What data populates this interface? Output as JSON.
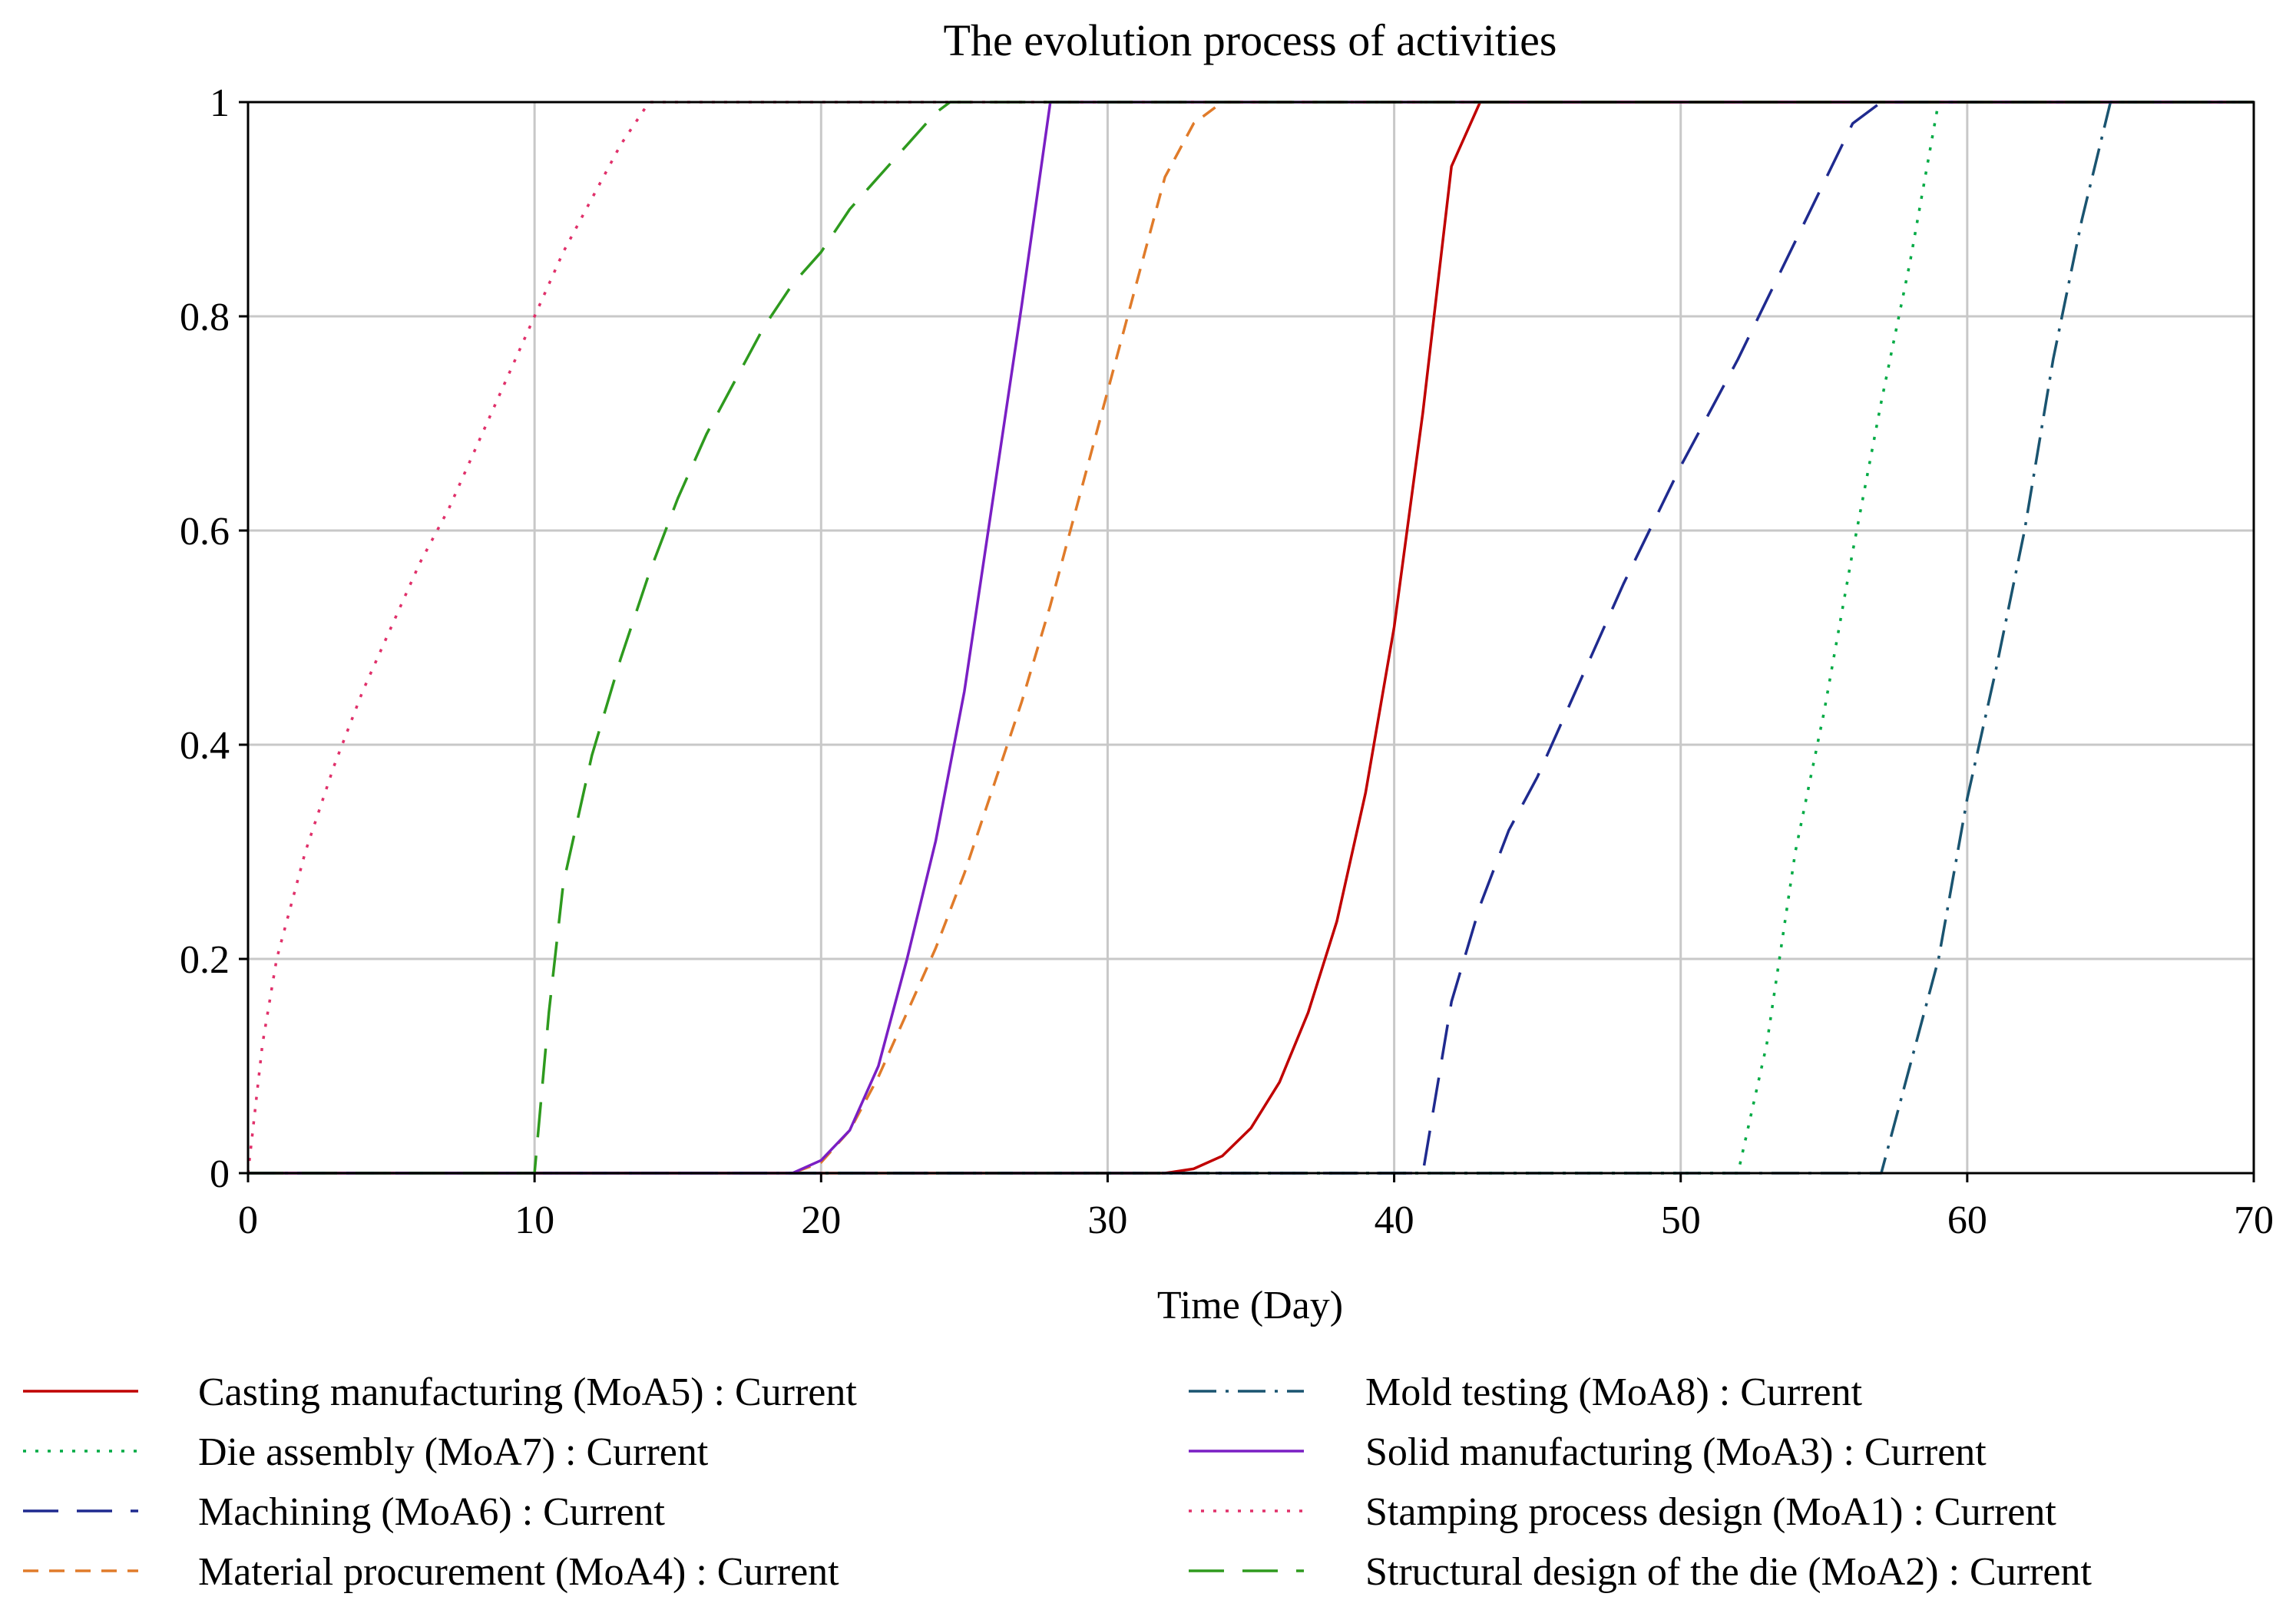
{
  "chart_data": {
    "type": "line",
    "title": "The evolution process of activities",
    "xlabel": "Time (Day)",
    "ylabel": "",
    "xlim": [
      0,
      70
    ],
    "ylim": [
      0,
      1
    ],
    "xticks": [
      0,
      10,
      20,
      30,
      40,
      50,
      60,
      70
    ],
    "yticks": [
      0,
      0.2,
      0.4,
      0.6,
      0.8,
      1
    ],
    "ytick_labels": [
      "0",
      "0.2",
      "0.4",
      "0.6",
      "0.8",
      "1"
    ],
    "grid": true,
    "legend_position": "bottom",
    "series": [
      {
        "name": "Casting manufacturing (MoA5) : Current",
        "color": "#c00000",
        "dash": "solid",
        "points": [
          [
            0,
            0
          ],
          [
            32,
            0
          ],
          [
            33,
            0.004
          ],
          [
            34,
            0.016
          ],
          [
            35,
            0.042
          ],
          [
            36,
            0.085
          ],
          [
            37,
            0.15
          ],
          [
            38,
            0.235
          ],
          [
            39,
            0.355
          ],
          [
            40,
            0.51
          ],
          [
            41,
            0.71
          ],
          [
            42,
            0.94
          ],
          [
            43,
            1
          ],
          [
            70,
            1
          ]
        ]
      },
      {
        "name": "Die assembly (MoA7) : Current",
        "color": "#00aa44",
        "dash": "dot",
        "points": [
          [
            0,
            0
          ],
          [
            52,
            0
          ],
          [
            53,
            0.12
          ],
          [
            54,
            0.3
          ],
          [
            55,
            0.43
          ],
          [
            56,
            0.58
          ],
          [
            57,
            0.72
          ],
          [
            58,
            0.85
          ],
          [
            59,
            1
          ],
          [
            70,
            1
          ]
        ]
      },
      {
        "name": "Machining (MoA6) : Current",
        "color": "#1f2a8f",
        "dash": "longdash",
        "points": [
          [
            0,
            0
          ],
          [
            41,
            0
          ],
          [
            42,
            0.16
          ],
          [
            43,
            0.25
          ],
          [
            44,
            0.32
          ],
          [
            45,
            0.37
          ],
          [
            46,
            0.43
          ],
          [
            48,
            0.55
          ],
          [
            50,
            0.66
          ],
          [
            52,
            0.76
          ],
          [
            54,
            0.87
          ],
          [
            56,
            0.98
          ],
          [
            57,
            1
          ],
          [
            70,
            1
          ]
        ]
      },
      {
        "name": "Material procurement (MoA4) : Current",
        "color": "#e07b2a",
        "dash": "dash",
        "points": [
          [
            0,
            0
          ],
          [
            19,
            0
          ],
          [
            20,
            0.01
          ],
          [
            21,
            0.04
          ],
          [
            22,
            0.09
          ],
          [
            23,
            0.15
          ],
          [
            24,
            0.21
          ],
          [
            25,
            0.28
          ],
          [
            26,
            0.36
          ],
          [
            27,
            0.44
          ],
          [
            28,
            0.53
          ],
          [
            29,
            0.63
          ],
          [
            30,
            0.73
          ],
          [
            31,
            0.83
          ],
          [
            32,
            0.93
          ],
          [
            33,
            0.98
          ],
          [
            34,
            1
          ],
          [
            70,
            1
          ]
        ]
      },
      {
        "name": "Mold testing (MoA8) : Current",
        "color": "#1a5470",
        "dash": "dashdot",
        "points": [
          [
            0,
            0
          ],
          [
            57,
            0
          ],
          [
            58,
            0.1
          ],
          [
            59,
            0.2
          ],
          [
            60,
            0.35
          ],
          [
            61,
            0.47
          ],
          [
            62,
            0.6
          ],
          [
            63,
            0.76
          ],
          [
            64,
            0.89
          ],
          [
            65,
            1
          ],
          [
            70,
            1
          ]
        ]
      },
      {
        "name": "Solid manufacturing (MoA3) : Current",
        "color": "#7a1fc4",
        "dash": "solid",
        "points": [
          [
            0,
            0
          ],
          [
            19,
            0
          ],
          [
            20,
            0.012
          ],
          [
            21,
            0.04
          ],
          [
            22,
            0.1
          ],
          [
            23,
            0.2
          ],
          [
            24,
            0.31
          ],
          [
            25,
            0.45
          ],
          [
            26,
            0.63
          ],
          [
            27,
            0.81
          ],
          [
            28,
            1
          ],
          [
            70,
            1
          ]
        ]
      },
      {
        "name": "Stamping process design (MoA1) : Current",
        "color": "#e0306a",
        "dash": "dot",
        "points": [
          [
            0,
            0
          ],
          [
            0.5,
            0.12
          ],
          [
            1,
            0.2
          ],
          [
            2,
            0.3
          ],
          [
            3,
            0.38
          ],
          [
            4,
            0.45
          ],
          [
            5,
            0.51
          ],
          [
            6,
            0.57
          ],
          [
            7,
            0.62
          ],
          [
            8,
            0.68
          ],
          [
            9,
            0.74
          ],
          [
            10,
            0.8
          ],
          [
            11,
            0.86
          ],
          [
            12,
            0.91
          ],
          [
            13,
            0.96
          ],
          [
            14,
            1
          ],
          [
            70,
            1
          ]
        ]
      },
      {
        "name": "Structural design of the die (MoA2) : Current",
        "color": "#2e9a1e",
        "dash": "longdash",
        "points": [
          [
            0,
            0
          ],
          [
            10,
            0
          ],
          [
            10.5,
            0.15
          ],
          [
            11,
            0.27
          ],
          [
            12,
            0.39
          ],
          [
            13,
            0.48
          ],
          [
            14,
            0.56
          ],
          [
            15,
            0.63
          ],
          [
            16,
            0.69
          ],
          [
            17,
            0.74
          ],
          [
            18,
            0.79
          ],
          [
            19,
            0.83
          ],
          [
            20,
            0.86
          ],
          [
            21,
            0.9
          ],
          [
            22,
            0.93
          ],
          [
            23,
            0.96
          ],
          [
            24,
            0.99
          ],
          [
            24.5,
            1
          ],
          [
            70,
            1
          ]
        ]
      }
    ]
  }
}
